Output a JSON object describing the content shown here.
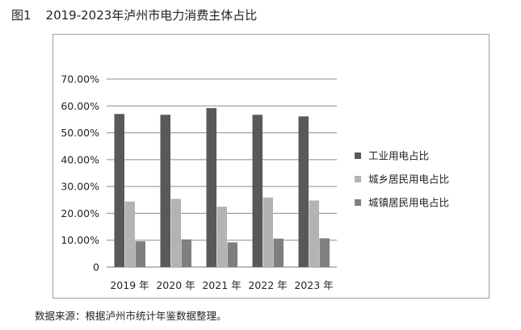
{
  "figure": {
    "number": "图1",
    "title": "2019-2023年泸州市电力消费主体占比",
    "source": "数据来源：根据泸州市统计年鉴数据整理。"
  },
  "chart_data": {
    "type": "bar",
    "categories": [
      "2019 年",
      "2020 年",
      "2021 年",
      "2022 年",
      "2023 年"
    ],
    "series": [
      {
        "name": "工业用电占比",
        "values": [
          57.0,
          56.7,
          59.2,
          56.7,
          56.1
        ],
        "color": "#595959"
      },
      {
        "name": "城乡居民用电占比",
        "values": [
          24.4,
          25.4,
          22.5,
          25.9,
          24.8
        ],
        "color": "#b3b3b3"
      },
      {
        "name": "城镇居民用电占比",
        "values": [
          9.6,
          10.3,
          9.2,
          10.6,
          10.7
        ],
        "color": "#7f7f7f"
      }
    ],
    "y_ticks": [
      "0",
      "10.00%",
      "20.00%",
      "30.00%",
      "40.00%",
      "50.00%",
      "60.00%",
      "70.00%"
    ],
    "ylim": [
      0,
      70
    ],
    "grid": true,
    "legend_position": "right"
  }
}
